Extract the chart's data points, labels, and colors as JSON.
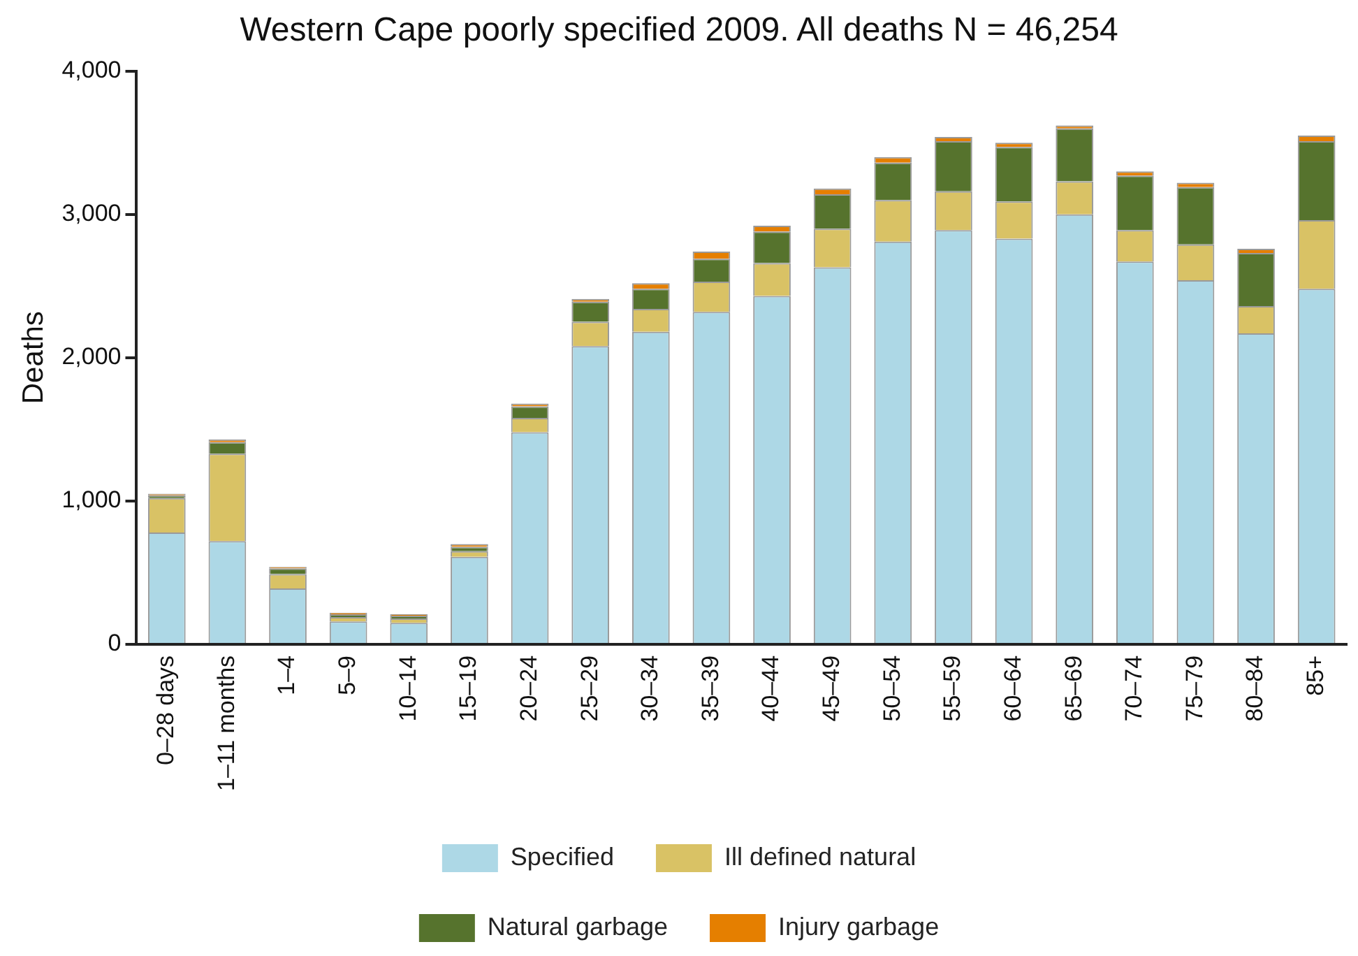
{
  "chart_data": {
    "type": "bar",
    "title": "Western Cape poorly specified 2009. All deaths N = 46,254",
    "ylabel": "Deaths",
    "categories": [
      "0–28 days",
      "1–11 months",
      "1–4",
      "5–9",
      "10–14",
      "15–19",
      "20–24",
      "25–29",
      "30–34",
      "35–39",
      "40–44",
      "45–49",
      "50–54",
      "55–59",
      "60–64",
      "65–69",
      "70–74",
      "75–79",
      "80–84",
      "85+"
    ],
    "stacked": true,
    "legend": "bottom",
    "grid": false,
    "ylim": [
      0,
      4000
    ],
    "yticks": [
      {
        "value": 0,
        "label": "0"
      },
      {
        "value": 1000,
        "label": "1,000"
      },
      {
        "value": 2000,
        "label": "2,000"
      },
      {
        "value": 3000,
        "label": "3,000"
      },
      {
        "value": 4000,
        "label": "4,000"
      }
    ],
    "series": [
      {
        "name": "Specified",
        "color": "#add8e6",
        "values": [
          780,
          720,
          390,
          160,
          150,
          610,
          1480,
          2080,
          2180,
          2320,
          2430,
          2630,
          2810,
          2890,
          2830,
          3000,
          2670,
          2540,
          2170,
          2480
        ]
      },
      {
        "name": "Ill defined natural",
        "color": "#d9c265",
        "values": [
          240,
          610,
          100,
          30,
          30,
          40,
          100,
          170,
          160,
          210,
          230,
          270,
          290,
          270,
          260,
          230,
          220,
          250,
          190,
          480
        ]
      },
      {
        "name": "Natural garbage",
        "color": "#56732d",
        "values": [
          20,
          80,
          40,
          20,
          20,
          30,
          80,
          140,
          140,
          160,
          220,
          240,
          260,
          350,
          380,
          370,
          380,
          400,
          370,
          550
        ]
      },
      {
        "name": "Injury garbage",
        "color": "#e57f00",
        "values": [
          10,
          20,
          10,
          10,
          10,
          20,
          20,
          20,
          40,
          50,
          40,
          40,
          40,
          30,
          30,
          20,
          30,
          30,
          30,
          40
        ]
      }
    ]
  }
}
